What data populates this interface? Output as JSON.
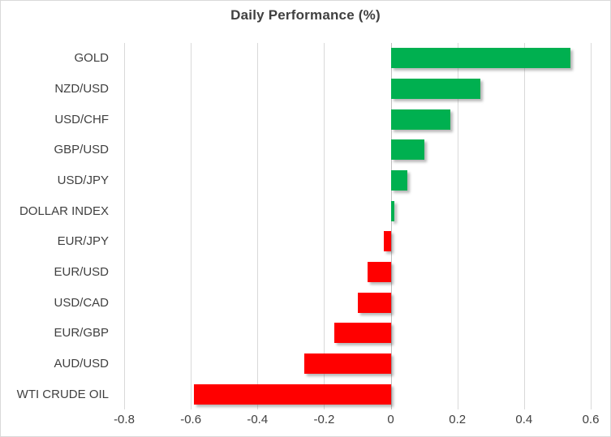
{
  "chart_data": {
    "type": "bar",
    "orientation": "horizontal",
    "title": "Daily Performance (%)",
    "categories": [
      "GOLD",
      "NZD/USD",
      "USD/CHF",
      "GBP/USD",
      "USD/JPY",
      "DOLLAR INDEX",
      "EUR/JPY",
      "EUR/USD",
      "USD/CAD",
      "EUR/GBP",
      "AUD/USD",
      "WTI CRUDE OIL"
    ],
    "values": [
      0.54,
      0.27,
      0.18,
      0.1,
      0.05,
      0.01,
      -0.02,
      -0.07,
      -0.1,
      -0.17,
      -0.26,
      -0.59
    ],
    "xlabel": "",
    "ylabel": "",
    "xlim": [
      -0.8,
      0.6
    ],
    "x_ticks": [
      {
        "value": -0.8,
        "label": "-0.8"
      },
      {
        "value": -0.6,
        "label": "-0.6"
      },
      {
        "value": -0.4,
        "label": "-0.4"
      },
      {
        "value": -0.2,
        "label": "-0.2"
      },
      {
        "value": 0,
        "label": "0"
      },
      {
        "value": 0.2,
        "label": "0.2"
      },
      {
        "value": 0.4,
        "label": "0.4"
      },
      {
        "value": 0.6,
        "label": "0.6"
      }
    ],
    "grid": "vertical-on",
    "legend": "none",
    "colors": {
      "positive_bar": "#00b050",
      "negative_bar": "#ff0000",
      "gridline": "#d9d9d9",
      "zero_axis": "#bfbfbf",
      "text": "#404040",
      "border": "#d9d9d9",
      "background": "#ffffff"
    }
  }
}
